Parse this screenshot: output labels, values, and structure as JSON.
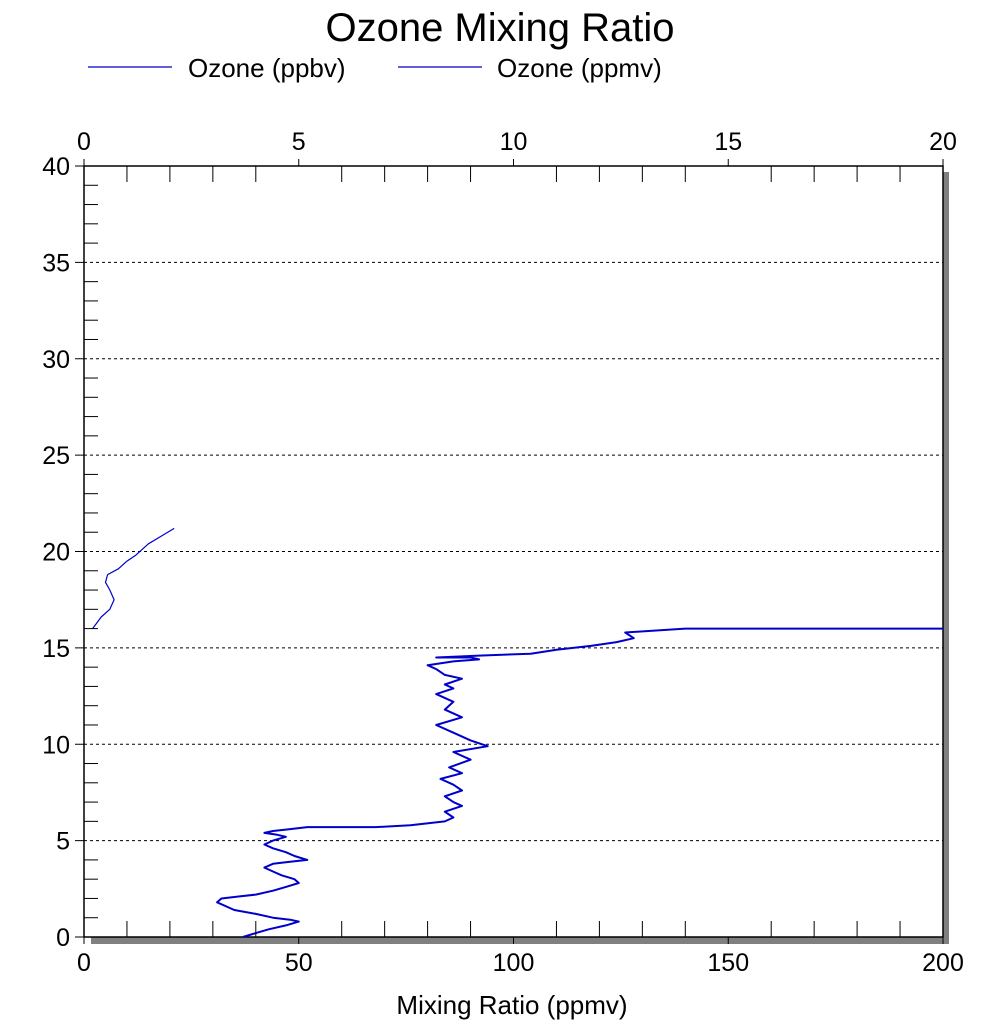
{
  "chart_data": {
    "type": "line",
    "title": "Ozone Mixing Ratio",
    "xlabel": "Mixing Ratio (ppmv)",
    "ylabel": "",
    "xlim_bottom": [
      0,
      200
    ],
    "xlim_top": [
      0,
      20
    ],
    "ylim": [
      0,
      40
    ],
    "x_ticks_bottom": [
      "0",
      "50",
      "100",
      "150",
      "200"
    ],
    "x_ticks_top": [
      "0",
      "5",
      "10",
      "15",
      "20"
    ],
    "y_ticks": [
      "0",
      "5",
      "10",
      "15",
      "20",
      "25",
      "30",
      "35",
      "40"
    ],
    "grid": "horizontal dashed",
    "legend_placement": "top",
    "series": [
      {
        "name": "Ozone (ppbv)",
        "color": "#0000cc",
        "axis": "bottom",
        "x": [
          37,
          40,
          43,
          47,
          50,
          48,
          44,
          40,
          35,
          31,
          32,
          36,
          40,
          44,
          47,
          50,
          49,
          46,
          44,
          42,
          44,
          48,
          52,
          49,
          47,
          44,
          42,
          44,
          47,
          45,
          42,
          44,
          48,
          52,
          56,
          60,
          68,
          76,
          84,
          86,
          84,
          88,
          86,
          84,
          88,
          86,
          83,
          88,
          85,
          90,
          86,
          94,
          90,
          86,
          82,
          88,
          84,
          86,
          82,
          86,
          84,
          88,
          84,
          82,
          80,
          86,
          92,
          90,
          86,
          82,
          92,
          104,
          110,
          118,
          124,
          128,
          126,
          140,
          200
        ],
        "y": [
          0.0,
          0.2,
          0.4,
          0.6,
          0.8,
          0.9,
          1.0,
          1.2,
          1.4,
          1.8,
          2.0,
          2.1,
          2.2,
          2.4,
          2.6,
          2.8,
          3.0,
          3.2,
          3.4,
          3.6,
          3.8,
          3.9,
          4.0,
          4.2,
          4.4,
          4.6,
          4.8,
          5.0,
          5.2,
          5.3,
          5.4,
          5.5,
          5.6,
          5.7,
          5.7,
          5.7,
          5.7,
          5.8,
          6.0,
          6.2,
          6.5,
          6.8,
          7.0,
          7.3,
          7.6,
          7.9,
          8.2,
          8.5,
          8.8,
          9.2,
          9.6,
          9.9,
          10.2,
          10.6,
          11.0,
          11.4,
          11.8,
          12.2,
          12.6,
          12.9,
          13.1,
          13.4,
          13.6,
          13.9,
          14.1,
          14.3,
          14.4,
          14.5,
          14.5,
          14.5,
          14.6,
          14.7,
          14.9,
          15.1,
          15.3,
          15.5,
          15.8,
          16.0,
          16.0
        ]
      },
      {
        "name": "Ozone (ppmv)",
        "color": "#0000cc",
        "axis": "top",
        "x": [
          0.2,
          0.4,
          0.6,
          0.7,
          0.6,
          0.5,
          0.55,
          0.8,
          1.0,
          1.2,
          1.35,
          1.5,
          1.8,
          2.1
        ],
        "y": [
          16.0,
          16.6,
          17.0,
          17.5,
          18.0,
          18.4,
          18.8,
          19.1,
          19.5,
          19.8,
          20.1,
          20.4,
          20.8,
          21.2
        ]
      }
    ]
  }
}
